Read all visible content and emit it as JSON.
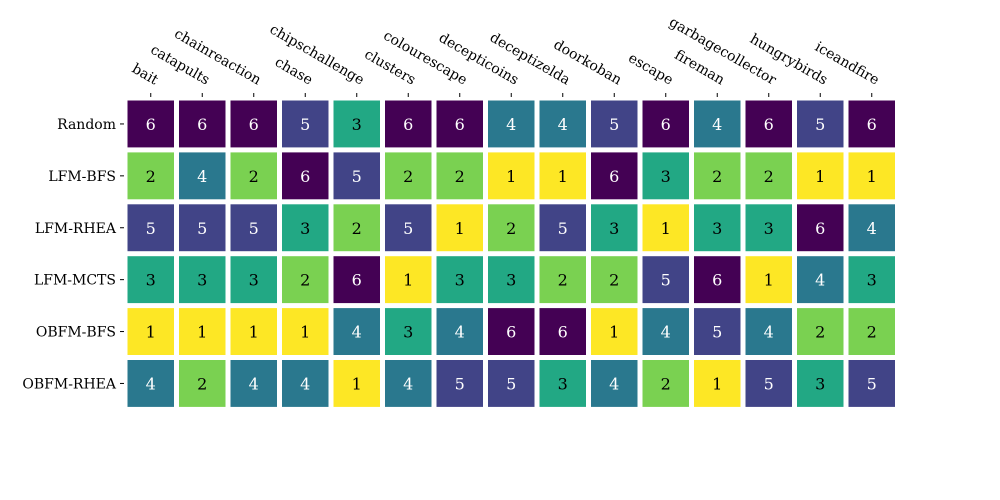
{
  "chart_data": {
    "type": "heatmap",
    "title": "",
    "xlabel": "",
    "ylabel": "",
    "columns": [
      "bait",
      "catapults",
      "chainreaction",
      "chase",
      "chipschallenge",
      "clusters",
      "colourescape",
      "decepticoins",
      "deceptizelda",
      "doorkoban",
      "escape",
      "fireman",
      "garbagecollector",
      "hungrybirds",
      "iceandfire"
    ],
    "rows": [
      "Random",
      "LFM-BFS",
      "LFM-RHEA",
      "LFM-MCTS",
      "OBFM-BFS",
      "OBFM-RHEA"
    ],
    "values": [
      [
        6,
        6,
        6,
        5,
        3,
        6,
        6,
        4,
        4,
        5,
        6,
        4,
        6,
        5,
        6
      ],
      [
        2,
        4,
        2,
        6,
        5,
        2,
        2,
        1,
        1,
        6,
        3,
        2,
        2,
        1,
        1
      ],
      [
        5,
        5,
        5,
        3,
        2,
        5,
        1,
        2,
        5,
        3,
        1,
        3,
        3,
        6,
        4
      ],
      [
        3,
        3,
        3,
        2,
        6,
        1,
        3,
        3,
        2,
        2,
        5,
        6,
        1,
        4,
        3
      ],
      [
        1,
        1,
        1,
        1,
        4,
        3,
        4,
        6,
        6,
        1,
        4,
        5,
        4,
        2,
        2
      ],
      [
        4,
        2,
        4,
        4,
        1,
        4,
        5,
        5,
        3,
        4,
        2,
        1,
        5,
        3,
        5
      ]
    ],
    "colormap": {
      "1": "#fde725",
      "2": "#7ad151",
      "3": "#22a884",
      "4": "#2a788e",
      "5": "#414487",
      "6": "#440154"
    },
    "text_colors": {
      "light": "#ffffff",
      "dark": "#000000"
    },
    "x_tick_position": "top",
    "grid": false
  }
}
